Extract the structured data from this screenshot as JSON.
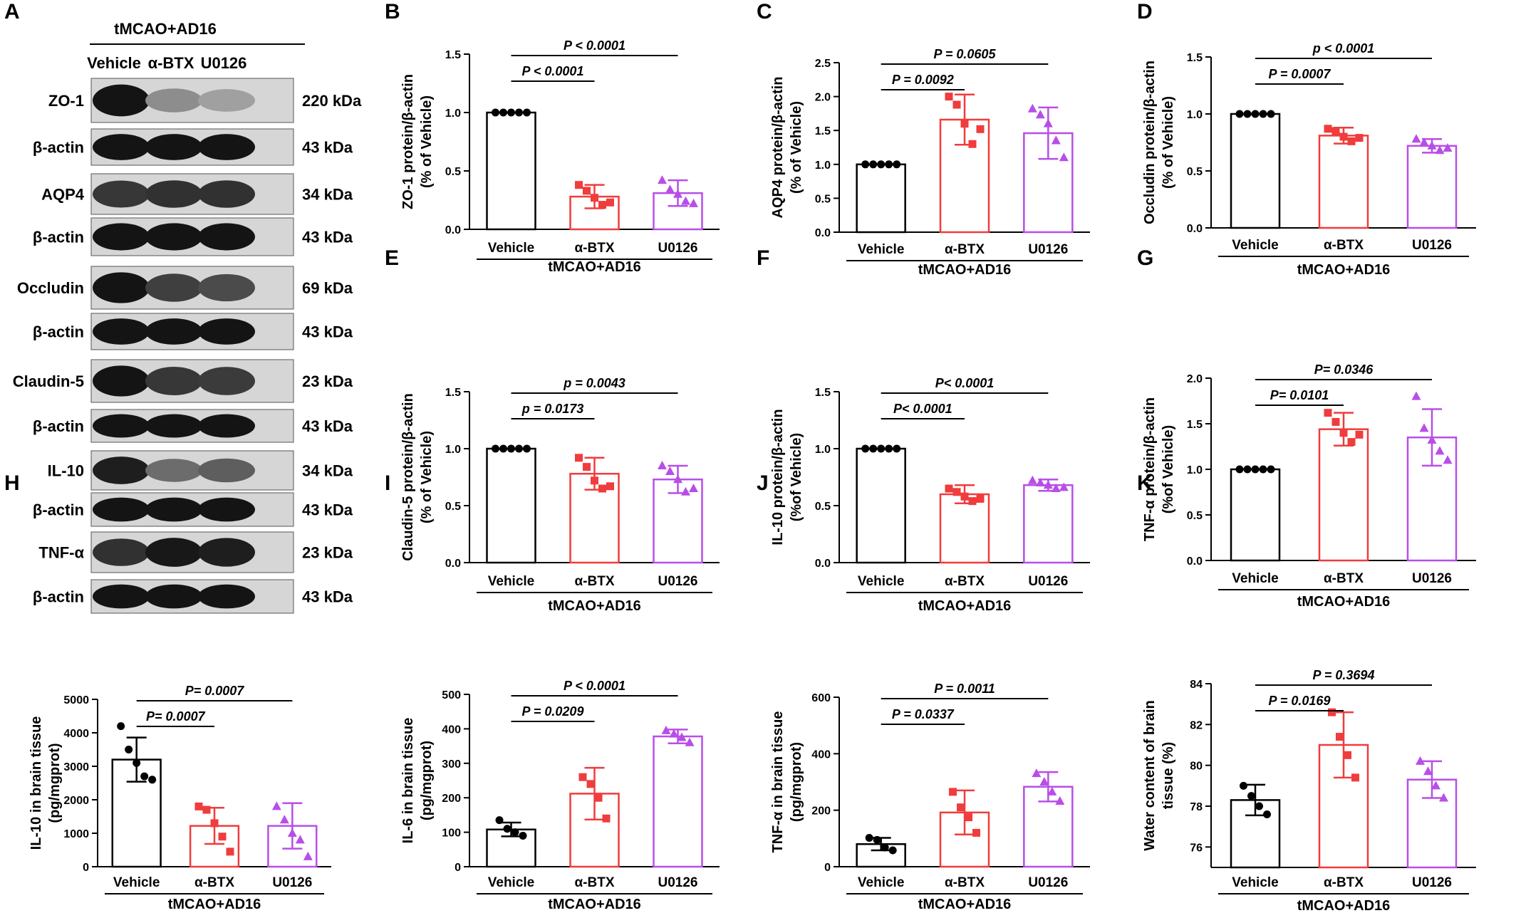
{
  "figure": {
    "panel_letters": [
      "A",
      "B",
      "C",
      "D",
      "E",
      "F",
      "G",
      "H",
      "I",
      "J",
      "K"
    ],
    "colors": {
      "vehicle": "#000000",
      "a_btx": "#f03c3c",
      "u0126": "#b84ee8"
    }
  },
  "western_blot": {
    "group_label": "tMCAO+AD16",
    "lanes": [
      "Vehicle",
      "α-BTX",
      "U0126"
    ],
    "rows": [
      {
        "protein": "ZO-1",
        "kda": "220 kDa",
        "intensity": [
          1.0,
          0.38,
          0.28
        ]
      },
      {
        "protein": "β-actin",
        "kda": "43 kDa",
        "intensity": [
          1.0,
          1.0,
          1.0
        ]
      },
      {
        "protein": "AQP4",
        "kda": "34 kDa",
        "intensity": [
          0.82,
          0.85,
          0.85
        ]
      },
      {
        "protein": "β-actin",
        "kda": "43 kDa",
        "intensity": [
          1.0,
          1.0,
          1.0
        ]
      },
      {
        "protein": "Occludin",
        "kda": "69 kDa",
        "intensity": [
          1.0,
          0.78,
          0.72
        ]
      },
      {
        "protein": "β-actin",
        "kda": "43 kDa",
        "intensity": [
          1.0,
          1.0,
          1.0
        ]
      },
      {
        "protein": "Claudin-5",
        "kda": "23 kDa",
        "intensity": [
          1.0,
          0.82,
          0.8
        ]
      },
      {
        "protein": "β-actin",
        "kda": "43 kDa",
        "intensity": [
          1.0,
          1.0,
          1.0
        ]
      },
      {
        "protein": "IL-10",
        "kda": "34 kDa",
        "intensity": [
          0.95,
          0.55,
          0.62
        ]
      },
      {
        "protein": "β-actin",
        "kda": "43 kDa",
        "intensity": [
          1.0,
          1.0,
          1.0
        ]
      },
      {
        "protein": "TNF-α",
        "kda": "23 kDa",
        "intensity": [
          0.85,
          0.98,
          0.95
        ]
      },
      {
        "protein": "β-actin",
        "kda": "43 kDa",
        "intensity": [
          1.0,
          1.0,
          1.0
        ]
      }
    ]
  },
  "chart_data": [
    {
      "panel": "B",
      "type": "bar",
      "categories": [
        "Vehicle",
        "α-BTX",
        "U0126"
      ],
      "group_label": "tMCAO+AD16",
      "ylabel": [
        "ZO-1 protein/β-actin",
        "(% of Vehicle)"
      ],
      "ylim": [
        0,
        1.5
      ],
      "yticks": [
        0,
        0.5,
        1.0,
        1.5
      ],
      "ytick_labels": [
        "0.0",
        "0.5",
        "1.0",
        "1.5"
      ],
      "means": [
        1.0,
        0.28,
        0.31
      ],
      "sd": [
        0,
        0.1,
        0.11
      ],
      "points": [
        [
          1,
          1,
          1,
          1,
          1
        ],
        [
          0.38,
          0.33,
          0.27,
          0.21,
          0.23
        ],
        [
          0.42,
          0.34,
          0.3,
          0.24,
          0.22
        ]
      ],
      "comparisons": [
        {
          "from": 0,
          "to": 1,
          "label": "P < 0.0001",
          "level": 0
        },
        {
          "from": 0,
          "to": 2,
          "label": "P < 0.0001",
          "level": 1
        }
      ]
    },
    {
      "panel": "C",
      "type": "bar",
      "categories": [
        "Vehicle",
        "α-BTX",
        "U0126"
      ],
      "group_label": "tMCAO+AD16",
      "ylabel": [
        "AQP4 protein/β-actin",
        "(% of Vehicle)"
      ],
      "ylim": [
        0,
        2.5
      ],
      "yticks": [
        0,
        0.5,
        1.0,
        1.5,
        2.0,
        2.5
      ],
      "ytick_labels": [
        "0.0",
        "0.5",
        "1.0",
        "1.5",
        "2.0",
        "2.5"
      ],
      "means": [
        1.0,
        1.66,
        1.46
      ],
      "sd": [
        0,
        0.37,
        0.38
      ],
      "points": [
        [
          1,
          1,
          1,
          1,
          1
        ],
        [
          2.0,
          1.88,
          1.6,
          1.3,
          1.52
        ],
        [
          1.82,
          1.73,
          1.6,
          1.35,
          1.1
        ]
      ],
      "comparisons": [
        {
          "from": 0,
          "to": 1,
          "label": "P = 0.0092",
          "level": 0
        },
        {
          "from": 0,
          "to": 2,
          "label": "P = 0.0605",
          "level": 1
        }
      ]
    },
    {
      "panel": "D",
      "type": "bar",
      "categories": [
        "Vehicle",
        "α-BTX",
        "U0126"
      ],
      "group_label": "tMCAO+AD16",
      "ylabel": [
        "Occludin protein/β-actin",
        "(% of Vehicle)"
      ],
      "ylim": [
        0,
        1.5
      ],
      "yticks": [
        0,
        0.5,
        1.0,
        1.5
      ],
      "ytick_labels": [
        "0.0",
        "0.5",
        "1.0",
        "1.5"
      ],
      "means": [
        1.0,
        0.81,
        0.72
      ],
      "sd": [
        0,
        0.07,
        0.06
      ],
      "points": [
        [
          1,
          1,
          1,
          1,
          1
        ],
        [
          0.87,
          0.85,
          0.8,
          0.76,
          0.79
        ],
        [
          0.78,
          0.75,
          0.72,
          0.68,
          0.7
        ]
      ],
      "comparisons": [
        {
          "from": 0,
          "to": 1,
          "label": "P = 0.0007",
          "level": 0
        },
        {
          "from": 0,
          "to": 2,
          "label": "p < 0.0001",
          "level": 1
        }
      ]
    },
    {
      "panel": "E",
      "type": "bar",
      "categories": [
        "Vehicle",
        "α-BTX",
        "U0126"
      ],
      "group_label": "tMCAO+AD16",
      "ylabel": [
        "Claudin-5 protein/β-actin",
        "(% of Vehicle)"
      ],
      "ylim": [
        0,
        1.5
      ],
      "yticks": [
        0,
        0.5,
        1.0,
        1.5
      ],
      "ytick_labels": [
        "0.0",
        "0.5",
        "1.0",
        "1.5"
      ],
      "means": [
        1.0,
        0.78,
        0.73
      ],
      "sd": [
        0,
        0.14,
        0.12
      ],
      "points": [
        [
          1,
          1,
          1,
          1,
          1
        ],
        [
          0.92,
          0.84,
          0.72,
          0.65,
          0.67
        ],
        [
          0.85,
          0.8,
          0.73,
          0.62,
          0.65
        ]
      ],
      "comparisons": [
        {
          "from": 0,
          "to": 1,
          "label": "p = 0.0173",
          "level": 0
        },
        {
          "from": 0,
          "to": 2,
          "label": "p = 0.0043",
          "level": 1
        }
      ]
    },
    {
      "panel": "F",
      "type": "bar",
      "categories": [
        "Vehicle",
        "α-BTX",
        "U0126"
      ],
      "group_label": "tMCAO+AD16",
      "ylabel": [
        "IL-10 protein/β-actin",
        "(%of Vehicle)"
      ],
      "ylim": [
        0,
        1.5
      ],
      "yticks": [
        0,
        0.5,
        1.0,
        1.5
      ],
      "ytick_labels": [
        "0.0",
        "0.5",
        "1.0",
        "1.5"
      ],
      "means": [
        1.0,
        0.6,
        0.68
      ],
      "sd": [
        0,
        0.08,
        0.05
      ],
      "points": [
        [
          1,
          1,
          1,
          1,
          1
        ],
        [
          0.65,
          0.62,
          0.58,
          0.54,
          0.56
        ],
        [
          0.72,
          0.7,
          0.68,
          0.65,
          0.66
        ]
      ],
      "comparisons": [
        {
          "from": 0,
          "to": 1,
          "label": "P< 0.0001",
          "level": 0
        },
        {
          "from": 0,
          "to": 2,
          "label": "P< 0.0001",
          "level": 1
        }
      ]
    },
    {
      "panel": "G",
      "type": "bar",
      "categories": [
        "Vehicle",
        "α-BTX",
        "U0126"
      ],
      "group_label": "tMCAO+AD16",
      "ylabel": [
        "TNF-α protein/β-actin",
        "(%of Vehicle)"
      ],
      "ylim": [
        0,
        2.0
      ],
      "yticks": [
        0,
        0.5,
        1.0,
        1.5,
        2.0
      ],
      "ytick_labels": [
        "0.0",
        "0.5",
        "1.0",
        "1.5",
        "2.0"
      ],
      "means": [
        1.0,
        1.44,
        1.35
      ],
      "sd": [
        0,
        0.18,
        0.31
      ],
      "points": [
        [
          1,
          1,
          1,
          1,
          1
        ],
        [
          1.62,
          1.52,
          1.4,
          1.3,
          1.38
        ],
        [
          1.8,
          1.45,
          1.32,
          1.2,
          1.1
        ]
      ],
      "comparisons": [
        {
          "from": 0,
          "to": 1,
          "label": "P= 0.0101",
          "level": 0
        },
        {
          "from": 0,
          "to": 2,
          "label": "P= 0.0346",
          "level": 1
        }
      ]
    },
    {
      "panel": "H",
      "type": "bar",
      "categories": [
        "Vehicle",
        "α-BTX",
        "U0126"
      ],
      "group_label": "tMCAO+AD16",
      "ylabel": [
        "IL-10 in brain tissue",
        "(pg/mgprot)"
      ],
      "ylim": [
        0,
        5000
      ],
      "yticks": [
        0,
        1000,
        2000,
        3000,
        4000,
        5000
      ],
      "ytick_labels": [
        "0",
        "1000",
        "2000",
        "3000",
        "4000",
        "5000"
      ],
      "means": [
        3200,
        1220,
        1220
      ],
      "sd": [
        660,
        540,
        680
      ],
      "points": [
        [
          4200,
          3500,
          3100,
          2700,
          2600
        ],
        [
          1800,
          1700,
          1300,
          900,
          450
        ],
        [
          1800,
          1400,
          1000,
          800,
          300
        ]
      ],
      "comparisons": [
        {
          "from": 0,
          "to": 1,
          "label": "P= 0.0007",
          "level": 0
        },
        {
          "from": 0,
          "to": 2,
          "label": "P= 0.0007",
          "level": 1
        }
      ]
    },
    {
      "panel": "I",
      "type": "bar",
      "categories": [
        "Vehicle",
        "α-BTX",
        "U0126"
      ],
      "group_label": "tMCAO+AD16",
      "ylabel": [
        "IL-6 in brain tissue",
        "(pg/mgprot)"
      ],
      "ylim": [
        0,
        500
      ],
      "yticks": [
        0,
        100,
        200,
        300,
        400,
        500
      ],
      "ytick_labels": [
        "0",
        "100",
        "200",
        "300",
        "400",
        "500"
      ],
      "means": [
        108,
        212,
        378
      ],
      "sd": [
        20,
        75,
        20
      ],
      "points": [
        [
          135,
          110,
          100,
          90
        ],
        [
          260,
          240,
          200,
          140
        ],
        [
          395,
          385,
          375,
          360
        ]
      ],
      "comparisons": [
        {
          "from": 0,
          "to": 1,
          "label": "P = 0.0209",
          "level": 0
        },
        {
          "from": 0,
          "to": 2,
          "label": "P < 0.0001",
          "level": 1
        }
      ]
    },
    {
      "panel": "J",
      "type": "bar",
      "categories": [
        "Vehicle",
        "α-BTX",
        "U0126"
      ],
      "group_label": "tMCAO+AD16",
      "ylabel": [
        "TNF-α in brain tissue",
        "(pg/mgprot)"
      ],
      "ylim": [
        0,
        600
      ],
      "yticks": [
        0,
        200,
        400,
        600
      ],
      "ytick_labels": [
        "0",
        "200",
        "400",
        "600"
      ],
      "means": [
        80,
        192,
        283
      ],
      "sd": [
        22,
        78,
        52
      ],
      "points": [
        [
          102,
          95,
          68,
          58
        ],
        [
          265,
          210,
          175,
          120
        ],
        [
          330,
          300,
          265,
          232
        ]
      ],
      "comparisons": [
        {
          "from": 0,
          "to": 1,
          "label": "P = 0.0337",
          "level": 0
        },
        {
          "from": 0,
          "to": 2,
          "label": "P = 0.0011",
          "level": 1
        }
      ]
    },
    {
      "panel": "K",
      "type": "bar",
      "categories": [
        "Vehicle",
        "α-BTX",
        "U0126"
      ],
      "group_label": "tMCAO+AD16",
      "ylabel": [
        "Water content of brain",
        "tissue (%)"
      ],
      "ylim": [
        75,
        84
      ],
      "yticks": [
        76,
        78,
        80,
        82,
        84
      ],
      "ytick_labels": [
        "76",
        "78",
        "80",
        "82",
        "84"
      ],
      "means": [
        78.3,
        81.0,
        79.3
      ],
      "sd": [
        0.75,
        1.6,
        0.9
      ],
      "points": [
        [
          79.0,
          78.5,
          78.0,
          77.6
        ],
        [
          82.6,
          81.4,
          80.5,
          79.4
        ],
        [
          80.2,
          79.7,
          79.0,
          78.4
        ]
      ],
      "comparisons": [
        {
          "from": 0,
          "to": 1,
          "label": "P = 0.0169",
          "level": 0
        },
        {
          "from": 0,
          "to": 2,
          "label": "P = 0.3694",
          "level": 1
        }
      ]
    }
  ]
}
